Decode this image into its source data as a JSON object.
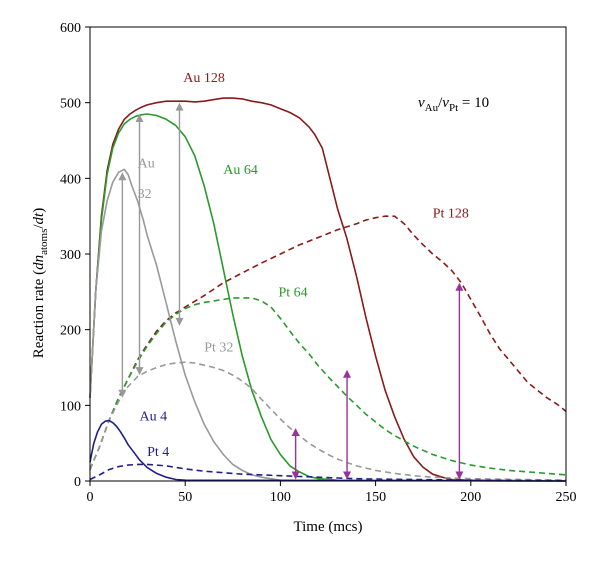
{
  "chart_data": {
    "type": "line",
    "xlabel": "Time (mcs)",
    "ylabel": {
      "prefix": "Reaction rate (",
      "n": "dn",
      "sub": "atoms",
      "slash": "/",
      "d": "dt",
      "suffix": ")"
    },
    "xlim": [
      0,
      250
    ],
    "ylim": [
      0,
      600
    ],
    "xticks": [
      "0",
      "50",
      "100",
      "150",
      "200",
      "250"
    ],
    "yticks": [
      "0",
      "100",
      "200",
      "300",
      "400",
      "500",
      "600"
    ],
    "grid": false,
    "annotation_ratio": {
      "v1": "ν",
      "sub1": "Au",
      "slash": "/",
      "v2": "ν",
      "sub2": "Pt",
      "eq": " = 10"
    },
    "series": [
      {
        "name": "Au 128",
        "color": "#8b1a1a",
        "dash": "solid",
        "points": [
          [
            0,
            110
          ],
          [
            3,
            250
          ],
          [
            6,
            350
          ],
          [
            9,
            410
          ],
          [
            12,
            445
          ],
          [
            15,
            465
          ],
          [
            18,
            478
          ],
          [
            21,
            485
          ],
          [
            24,
            490
          ],
          [
            27,
            494
          ],
          [
            30,
            497
          ],
          [
            35,
            500
          ],
          [
            40,
            502
          ],
          [
            45,
            502
          ],
          [
            50,
            502
          ],
          [
            55,
            501
          ],
          [
            60,
            502
          ],
          [
            65,
            504
          ],
          [
            70,
            506
          ],
          [
            75,
            506
          ],
          [
            80,
            505
          ],
          [
            85,
            502
          ],
          [
            90,
            500
          ],
          [
            95,
            497
          ],
          [
            100,
            492
          ],
          [
            105,
            487
          ],
          [
            110,
            480
          ],
          [
            115,
            468
          ],
          [
            118,
            458
          ],
          [
            122,
            440
          ],
          [
            126,
            400
          ],
          [
            130,
            360
          ],
          [
            135,
            320
          ],
          [
            140,
            270
          ],
          [
            145,
            215
          ],
          [
            150,
            165
          ],
          [
            155,
            120
          ],
          [
            160,
            85
          ],
          [
            165,
            55
          ],
          [
            170,
            32
          ],
          [
            175,
            18
          ],
          [
            180,
            9
          ],
          [
            185,
            5
          ],
          [
            190,
            2
          ],
          [
            200,
            1
          ],
          [
            250,
            0
          ]
        ]
      },
      {
        "name": "Pt 128",
        "color": "#8b1a1a",
        "dash": "dashed",
        "points": [
          [
            0,
            15
          ],
          [
            5,
            45
          ],
          [
            10,
            80
          ],
          [
            15,
            110
          ],
          [
            20,
            135
          ],
          [
            25,
            160
          ],
          [
            30,
            180
          ],
          [
            35,
            198
          ],
          [
            40,
            212
          ],
          [
            45,
            222
          ],
          [
            50,
            230
          ],
          [
            60,
            245
          ],
          [
            70,
            262
          ],
          [
            80,
            275
          ],
          [
            90,
            288
          ],
          [
            100,
            300
          ],
          [
            110,
            312
          ],
          [
            120,
            322
          ],
          [
            130,
            332
          ],
          [
            140,
            340
          ],
          [
            145,
            345
          ],
          [
            150,
            348
          ],
          [
            155,
            350
          ],
          [
            160,
            350
          ],
          [
            165,
            340
          ],
          [
            170,
            325
          ],
          [
            175,
            312
          ],
          [
            180,
            300
          ],
          [
            185,
            290
          ],
          [
            190,
            278
          ],
          [
            195,
            262
          ],
          [
            200,
            240
          ],
          [
            205,
            218
          ],
          [
            210,
            195
          ],
          [
            215,
            175
          ],
          [
            220,
            160
          ],
          [
            225,
            145
          ],
          [
            230,
            130
          ],
          [
            235,
            120
          ],
          [
            240,
            110
          ],
          [
            245,
            102
          ],
          [
            250,
            92
          ]
        ]
      },
      {
        "name": "Au 64",
        "color": "#2a9a2a",
        "dash": "solid",
        "points": [
          [
            0,
            110
          ],
          [
            3,
            250
          ],
          [
            6,
            345
          ],
          [
            9,
            405
          ],
          [
            12,
            440
          ],
          [
            15,
            460
          ],
          [
            18,
            472
          ],
          [
            21,
            478
          ],
          [
            24,
            482
          ],
          [
            27,
            484
          ],
          [
            30,
            485
          ],
          [
            35,
            483
          ],
          [
            40,
            478
          ],
          [
            45,
            470
          ],
          [
            50,
            455
          ],
          [
            55,
            430
          ],
          [
            60,
            390
          ],
          [
            65,
            340
          ],
          [
            70,
            280
          ],
          [
            75,
            220
          ],
          [
            80,
            165
          ],
          [
            85,
            120
          ],
          [
            90,
            85
          ],
          [
            95,
            55
          ],
          [
            100,
            35
          ],
          [
            105,
            20
          ],
          [
            110,
            12
          ],
          [
            115,
            6
          ],
          [
            120,
            3
          ],
          [
            130,
            1
          ],
          [
            250,
            0
          ]
        ]
      },
      {
        "name": "Pt 64",
        "color": "#2a9a2a",
        "dash": "dashed",
        "points": [
          [
            0,
            15
          ],
          [
            5,
            45
          ],
          [
            10,
            80
          ],
          [
            15,
            110
          ],
          [
            20,
            135
          ],
          [
            25,
            158
          ],
          [
            30,
            178
          ],
          [
            35,
            195
          ],
          [
            40,
            210
          ],
          [
            45,
            220
          ],
          [
            50,
            228
          ],
          [
            55,
            233
          ],
          [
            60,
            236
          ],
          [
            65,
            238
          ],
          [
            70,
            240
          ],
          [
            75,
            242
          ],
          [
            80,
            242
          ],
          [
            85,
            242
          ],
          [
            90,
            238
          ],
          [
            95,
            230
          ],
          [
            100,
            215
          ],
          [
            105,
            198
          ],
          [
            110,
            182
          ],
          [
            115,
            168
          ],
          [
            120,
            152
          ],
          [
            125,
            138
          ],
          [
            130,
            125
          ],
          [
            135,
            112
          ],
          [
            140,
            100
          ],
          [
            145,
            88
          ],
          [
            150,
            78
          ],
          [
            155,
            68
          ],
          [
            160,
            60
          ],
          [
            170,
            46
          ],
          [
            180,
            35
          ],
          [
            190,
            27
          ],
          [
            200,
            21
          ],
          [
            210,
            17
          ],
          [
            220,
            14
          ],
          [
            230,
            12
          ],
          [
            240,
            10
          ],
          [
            250,
            8
          ]
        ]
      },
      {
        "name": "Au 32",
        "color": "#999999",
        "dash": "solid",
        "points": [
          [
            0,
            110
          ],
          [
            3,
            250
          ],
          [
            6,
            330
          ],
          [
            9,
            370
          ],
          [
            12,
            395
          ],
          [
            15,
            408
          ],
          [
            18,
            412
          ],
          [
            20,
            405
          ],
          [
            22,
            390
          ],
          [
            25,
            370
          ],
          [
            28,
            345
          ],
          [
            30,
            325
          ],
          [
            35,
            285
          ],
          [
            40,
            235
          ],
          [
            45,
            185
          ],
          [
            50,
            140
          ],
          [
            55,
            105
          ],
          [
            60,
            75
          ],
          [
            65,
            52
          ],
          [
            70,
            35
          ],
          [
            75,
            22
          ],
          [
            80,
            14
          ],
          [
            85,
            8
          ],
          [
            90,
            5
          ],
          [
            95,
            3
          ],
          [
            100,
            1
          ],
          [
            250,
            0
          ]
        ]
      },
      {
        "name": "Pt 32",
        "color": "#999999",
        "dash": "dashed",
        "points": [
          [
            0,
            15
          ],
          [
            5,
            45
          ],
          [
            10,
            80
          ],
          [
            15,
            105
          ],
          [
            20,
            125
          ],
          [
            25,
            138
          ],
          [
            30,
            145
          ],
          [
            35,
            150
          ],
          [
            40,
            154
          ],
          [
            45,
            156
          ],
          [
            50,
            157
          ],
          [
            55,
            156
          ],
          [
            60,
            153
          ],
          [
            65,
            150
          ],
          [
            70,
            146
          ],
          [
            75,
            140
          ],
          [
            80,
            132
          ],
          [
            85,
            122
          ],
          [
            90,
            108
          ],
          [
            95,
            95
          ],
          [
            100,
            82
          ],
          [
            105,
            70
          ],
          [
            110,
            60
          ],
          [
            115,
            50
          ],
          [
            120,
            42
          ],
          [
            125,
            35
          ],
          [
            130,
            29
          ],
          [
            140,
            20
          ],
          [
            150,
            14
          ],
          [
            160,
            10
          ],
          [
            170,
            7
          ],
          [
            180,
            5
          ],
          [
            190,
            4
          ],
          [
            200,
            3
          ],
          [
            250,
            1
          ]
        ]
      },
      {
        "name": "Au 4",
        "color": "#1f1f8a",
        "dash": "solid",
        "points": [
          [
            0,
            25
          ],
          [
            2,
            50
          ],
          [
            4,
            65
          ],
          [
            6,
            75
          ],
          [
            8,
            79
          ],
          [
            10,
            80
          ],
          [
            12,
            77
          ],
          [
            14,
            72
          ],
          [
            16,
            65
          ],
          [
            18,
            57
          ],
          [
            20,
            48
          ],
          [
            23,
            38
          ],
          [
            26,
            28
          ],
          [
            30,
            18
          ],
          [
            35,
            10
          ],
          [
            40,
            5
          ],
          [
            45,
            2
          ],
          [
            50,
            1
          ],
          [
            250,
            0
          ]
        ]
      },
      {
        "name": "Pt 4",
        "color": "#1f1f8a",
        "dash": "dashed",
        "points": [
          [
            0,
            2
          ],
          [
            5,
            8
          ],
          [
            10,
            15
          ],
          [
            15,
            19
          ],
          [
            20,
            21
          ],
          [
            25,
            22
          ],
          [
            30,
            22
          ],
          [
            35,
            21
          ],
          [
            40,
            20
          ],
          [
            45,
            18
          ],
          [
            50,
            16
          ],
          [
            60,
            13
          ],
          [
            70,
            11
          ],
          [
            80,
            9
          ],
          [
            90,
            8
          ],
          [
            100,
            7
          ],
          [
            110,
            6
          ],
          [
            120,
            5
          ],
          [
            130,
            4
          ],
          [
            140,
            3
          ],
          [
            150,
            2.5
          ],
          [
            170,
            2
          ],
          [
            200,
            1
          ],
          [
            250,
            0.5
          ]
        ]
      }
    ],
    "labels": [
      {
        "text": "Au 128",
        "color": "#8b1a1a",
        "x": 49,
        "y": 527
      },
      {
        "text": "Au 64",
        "color": "#2a9a2a",
        "x": 70,
        "y": 406
      },
      {
        "text": "Au",
        "color": "#999999",
        "x": 25,
        "y": 414
      },
      {
        "text": "32",
        "color": "#999999",
        "x": 25,
        "y": 374
      },
      {
        "text": "Pt 128",
        "color": "#8b1a1a",
        "x": 180,
        "y": 348
      },
      {
        "text": "Pt 64",
        "color": "#2a9a2a",
        "x": 99,
        "y": 244
      },
      {
        "text": "Pt 32",
        "color": "#999999",
        "x": 60,
        "y": 171
      },
      {
        "text": "Au 4",
        "color": "#1f1f8a",
        "x": 26,
        "y": 80
      },
      {
        "text": "Pt 4",
        "color": "#1f1f8a",
        "x": 30,
        "y": 33
      }
    ],
    "arrows": [
      {
        "color": "#999999",
        "x": 17,
        "y1": 408,
        "y2": 110
      },
      {
        "color": "#999999",
        "x": 26,
        "y1": 485,
        "y2": 140
      },
      {
        "color": "#999999",
        "x": 47,
        "y1": 500,
        "y2": 205
      },
      {
        "color": "#993399",
        "x": 108,
        "y1": 70,
        "y2": 2
      },
      {
        "color": "#993399",
        "x": 135,
        "y1": 147,
        "y2": 2
      },
      {
        "color": "#993399",
        "x": 194,
        "y1": 262,
        "y2": 2
      }
    ]
  }
}
